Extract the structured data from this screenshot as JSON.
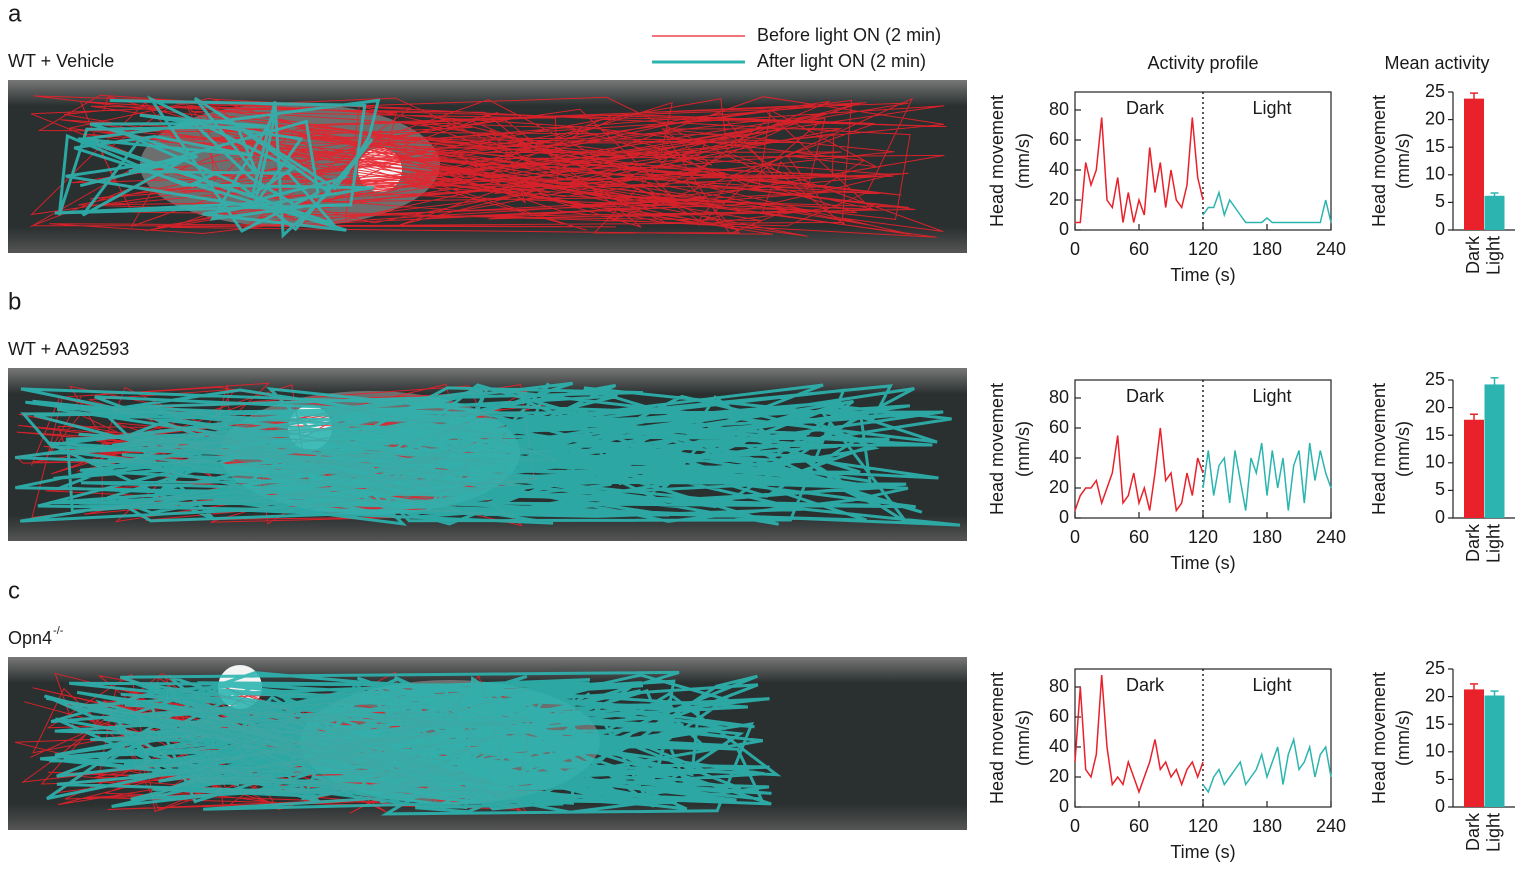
{
  "legend": {
    "entries": [
      {
        "label": "Before light ON (2 min)",
        "color": "#e8212a"
      },
      {
        "label": "After light ON (2 min)",
        "color": "#2cb5b0"
      }
    ]
  },
  "panels": [
    {
      "label": "a",
      "condition": "WT + Vehicle"
    },
    {
      "label": "b",
      "condition": "WT + AA92593"
    },
    {
      "label": "c",
      "condition": "Opn4",
      "condition_sup": "-/-"
    }
  ],
  "chart_data": [
    {
      "type": "line",
      "title": "Activity profile",
      "ylabel": [
        "Head movement",
        "(mm/s)"
      ],
      "xlabel": "Time (s)",
      "xlim": [
        0,
        240
      ],
      "xticks": [
        0,
        60,
        120,
        180,
        240
      ],
      "ylim": [
        0,
        92
      ],
      "yticks": [
        0,
        20,
        40,
        60,
        80
      ],
      "divider_x": 120,
      "series": [
        {
          "name": "Dark",
          "color": "#e8212a",
          "x": [
            0,
            5,
            10,
            15,
            20,
            25,
            30,
            35,
            40,
            45,
            50,
            55,
            60,
            65,
            70,
            75,
            80,
            85,
            90,
            95,
            100,
            105,
            110,
            115,
            120
          ],
          "values": [
            5,
            5,
            45,
            30,
            40,
            75,
            20,
            15,
            35,
            5,
            25,
            5,
            20,
            10,
            55,
            25,
            45,
            15,
            40,
            20,
            15,
            30,
            75,
            35,
            20
          ]
        },
        {
          "name": "Light",
          "color": "#2cb5b0",
          "x": [
            120,
            125,
            130,
            135,
            140,
            145,
            150,
            155,
            160,
            165,
            170,
            175,
            180,
            185,
            190,
            195,
            200,
            205,
            210,
            215,
            220,
            225,
            230,
            235,
            240
          ],
          "values": [
            10,
            15,
            15,
            25,
            10,
            20,
            15,
            10,
            5,
            5,
            5,
            5,
            8,
            5,
            5,
            5,
            5,
            5,
            5,
            5,
            5,
            5,
            5,
            20,
            5
          ]
        }
      ]
    },
    {
      "type": "bar",
      "title": "Mean activity",
      "ylabel": [
        "Head movement",
        "(mm/s)"
      ],
      "categories": [
        "Dark",
        "Light"
      ],
      "values": [
        23.8,
        6.2
      ],
      "errors": [
        1,
        0.5
      ],
      "colors": [
        "#e8212a",
        "#2cb5b0"
      ],
      "ylim": [
        0,
        25
      ],
      "yticks": [
        0,
        5,
        10,
        15,
        20,
        25
      ]
    },
    {
      "type": "line",
      "ylabel": [
        "Head movement",
        "(mm/s)"
      ],
      "xlabel": "Time (s)",
      "xlim": [
        0,
        240
      ],
      "xticks": [
        0,
        60,
        120,
        180,
        240
      ],
      "ylim": [
        0,
        92
      ],
      "yticks": [
        0,
        20,
        40,
        60,
        80
      ],
      "divider_x": 120,
      "series": [
        {
          "name": "Dark",
          "color": "#e8212a",
          "x": [
            0,
            5,
            10,
            15,
            20,
            25,
            30,
            35,
            40,
            45,
            50,
            55,
            60,
            65,
            70,
            75,
            80,
            85,
            90,
            95,
            100,
            105,
            110,
            115,
            120
          ],
          "values": [
            5,
            15,
            20,
            20,
            25,
            10,
            20,
            30,
            55,
            10,
            15,
            30,
            10,
            20,
            5,
            30,
            60,
            25,
            30,
            5,
            10,
            30,
            15,
            40,
            30
          ]
        },
        {
          "name": "Light",
          "color": "#2cb5b0",
          "x": [
            120,
            125,
            130,
            135,
            140,
            145,
            150,
            155,
            160,
            165,
            170,
            175,
            180,
            185,
            190,
            195,
            200,
            205,
            210,
            215,
            220,
            225,
            230,
            235,
            240
          ],
          "values": [
            20,
            45,
            15,
            35,
            40,
            10,
            45,
            25,
            5,
            40,
            30,
            50,
            15,
            45,
            20,
            40,
            5,
            35,
            45,
            10,
            50,
            25,
            45,
            30,
            20
          ]
        }
      ]
    },
    {
      "type": "bar",
      "ylabel": [
        "Head movement",
        "(mm/s)"
      ],
      "categories": [
        "Dark",
        "Light"
      ],
      "values": [
        17.8,
        24.2
      ],
      "errors": [
        1,
        1.2
      ],
      "colors": [
        "#e8212a",
        "#2cb5b0"
      ],
      "ylim": [
        0,
        25
      ],
      "yticks": [
        0,
        5,
        10,
        15,
        20,
        25
      ]
    },
    {
      "type": "line",
      "ylabel": [
        "Head movement",
        "(mm/s)"
      ],
      "xlabel": "Time (s)",
      "xlim": [
        0,
        240
      ],
      "xticks": [
        0,
        60,
        120,
        180,
        240
      ],
      "ylim": [
        0,
        92
      ],
      "yticks": [
        0,
        20,
        40,
        60,
        80
      ],
      "divider_x": 120,
      "series": [
        {
          "name": "Dark",
          "color": "#e8212a",
          "x": [
            0,
            5,
            10,
            15,
            20,
            25,
            30,
            35,
            40,
            45,
            50,
            55,
            60,
            65,
            70,
            75,
            80,
            85,
            90,
            95,
            100,
            105,
            110,
            115,
            120
          ],
          "values": [
            30,
            80,
            25,
            20,
            35,
            88,
            40,
            15,
            20,
            15,
            30,
            20,
            10,
            20,
            30,
            45,
            25,
            30,
            20,
            25,
            15,
            25,
            30,
            20,
            30
          ]
        },
        {
          "name": "Light",
          "color": "#2cb5b0",
          "x": [
            120,
            125,
            130,
            135,
            140,
            145,
            150,
            155,
            160,
            165,
            170,
            175,
            180,
            185,
            190,
            195,
            200,
            205,
            210,
            215,
            220,
            225,
            230,
            235,
            240
          ],
          "values": [
            15,
            10,
            20,
            25,
            15,
            20,
            25,
            30,
            15,
            20,
            25,
            35,
            20,
            30,
            40,
            15,
            35,
            45,
            25,
            30,
            40,
            20,
            35,
            40,
            20
          ]
        }
      ]
    },
    {
      "type": "bar",
      "ylabel": [
        "Head movement",
        "(mm/s)"
      ],
      "categories": [
        "Dark",
        "Light"
      ],
      "values": [
        21.3,
        20.2
      ],
      "errors": [
        1,
        0.8
      ],
      "colors": [
        "#e8212a",
        "#2cb5b0"
      ],
      "ylim": [
        0,
        25
      ],
      "yticks": [
        0,
        5,
        10,
        15,
        20,
        25
      ]
    }
  ]
}
